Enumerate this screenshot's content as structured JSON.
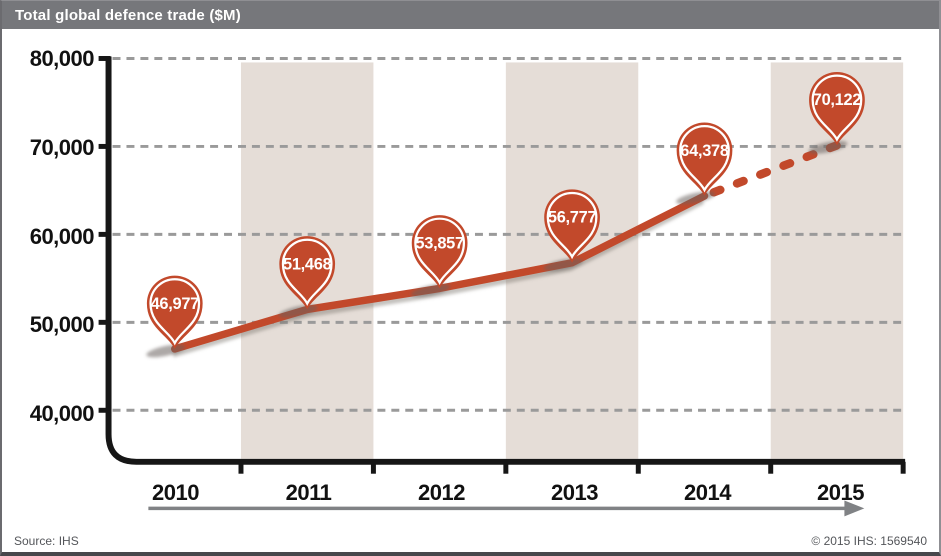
{
  "header": {
    "title": "Total global defence trade ($M)"
  },
  "footer": {
    "source": "Source: IHS",
    "copyright": "© 2015 IHS: 1569540"
  },
  "chart_data": {
    "type": "line",
    "title": "Total global defence trade ($M)",
    "categories": [
      "2010",
      "2011",
      "2012",
      "2013",
      "2014",
      "2015"
    ],
    "values": [
      46977,
      51468,
      53857,
      56777,
      64378,
      70122
    ],
    "point_labels": [
      "46,977",
      "51,468",
      "53,857",
      "56,777",
      "64,378",
      "70,122"
    ],
    "yticks": [
      {
        "label": "80,000",
        "value": 80000
      },
      {
        "label": "70,000",
        "value": 70000
      },
      {
        "label": "60,000",
        "value": 60000
      },
      {
        "label": "50,000",
        "value": 50000
      },
      {
        "label": "40,000",
        "value": 40000
      }
    ],
    "ylim": [
      40000,
      80000
    ],
    "grid": "horizontal-dashed",
    "legend": "none",
    "line_style": {
      "solid_through_index": 4,
      "dashed_segment_indices": [
        4,
        5
      ]
    },
    "shaded_column_indices": [
      1,
      3,
      5
    ],
    "marker": "teardrop-pin-with-value",
    "x_axis_arrow": "left-to-right",
    "colors": {
      "header_bg": "#76777b",
      "header_text": "#ffffff",
      "line": "#c2492b",
      "pin_fill": "#c2492b",
      "pin_ring": "#ffffff",
      "pin_text": "#ffffff",
      "band": "#e5ddd7",
      "gridline": "#9a9a9a",
      "axis": "#161616",
      "arrow": "#808285",
      "footer_text": "#54565a"
    }
  }
}
